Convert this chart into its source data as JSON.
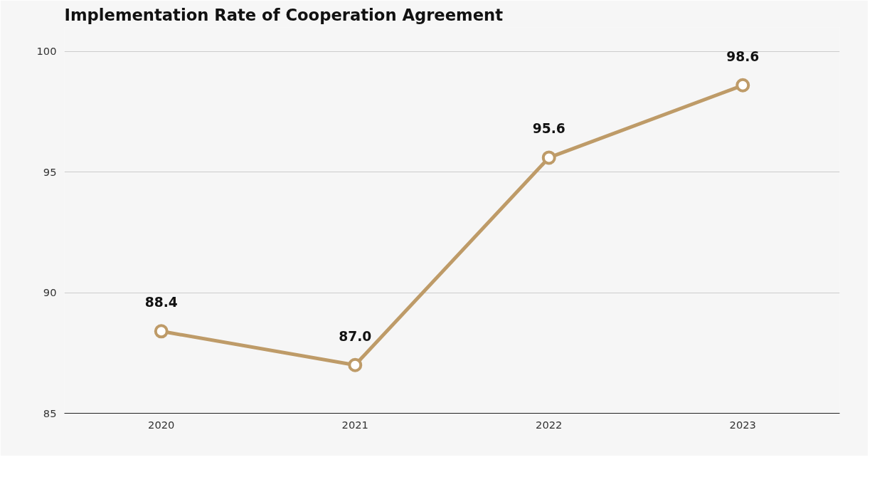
{
  "chart_data": {
    "type": "line",
    "title": "Implementation Rate of Cooperation Agreement",
    "categories": [
      "2020",
      "2021",
      "2022",
      "2023"
    ],
    "series": [
      {
        "color": "#be9b68",
        "values": [
          88.4,
          87.0,
          95.6,
          98.6
        ],
        "value_labels": [
          "88.4",
          "87.0",
          "95.6",
          "98.6"
        ]
      }
    ],
    "ylim": [
      85,
      101
    ],
    "yticks": [
      85,
      90,
      95,
      100
    ],
    "grid": "y",
    "marker": "circle",
    "line_style": "solid"
  }
}
